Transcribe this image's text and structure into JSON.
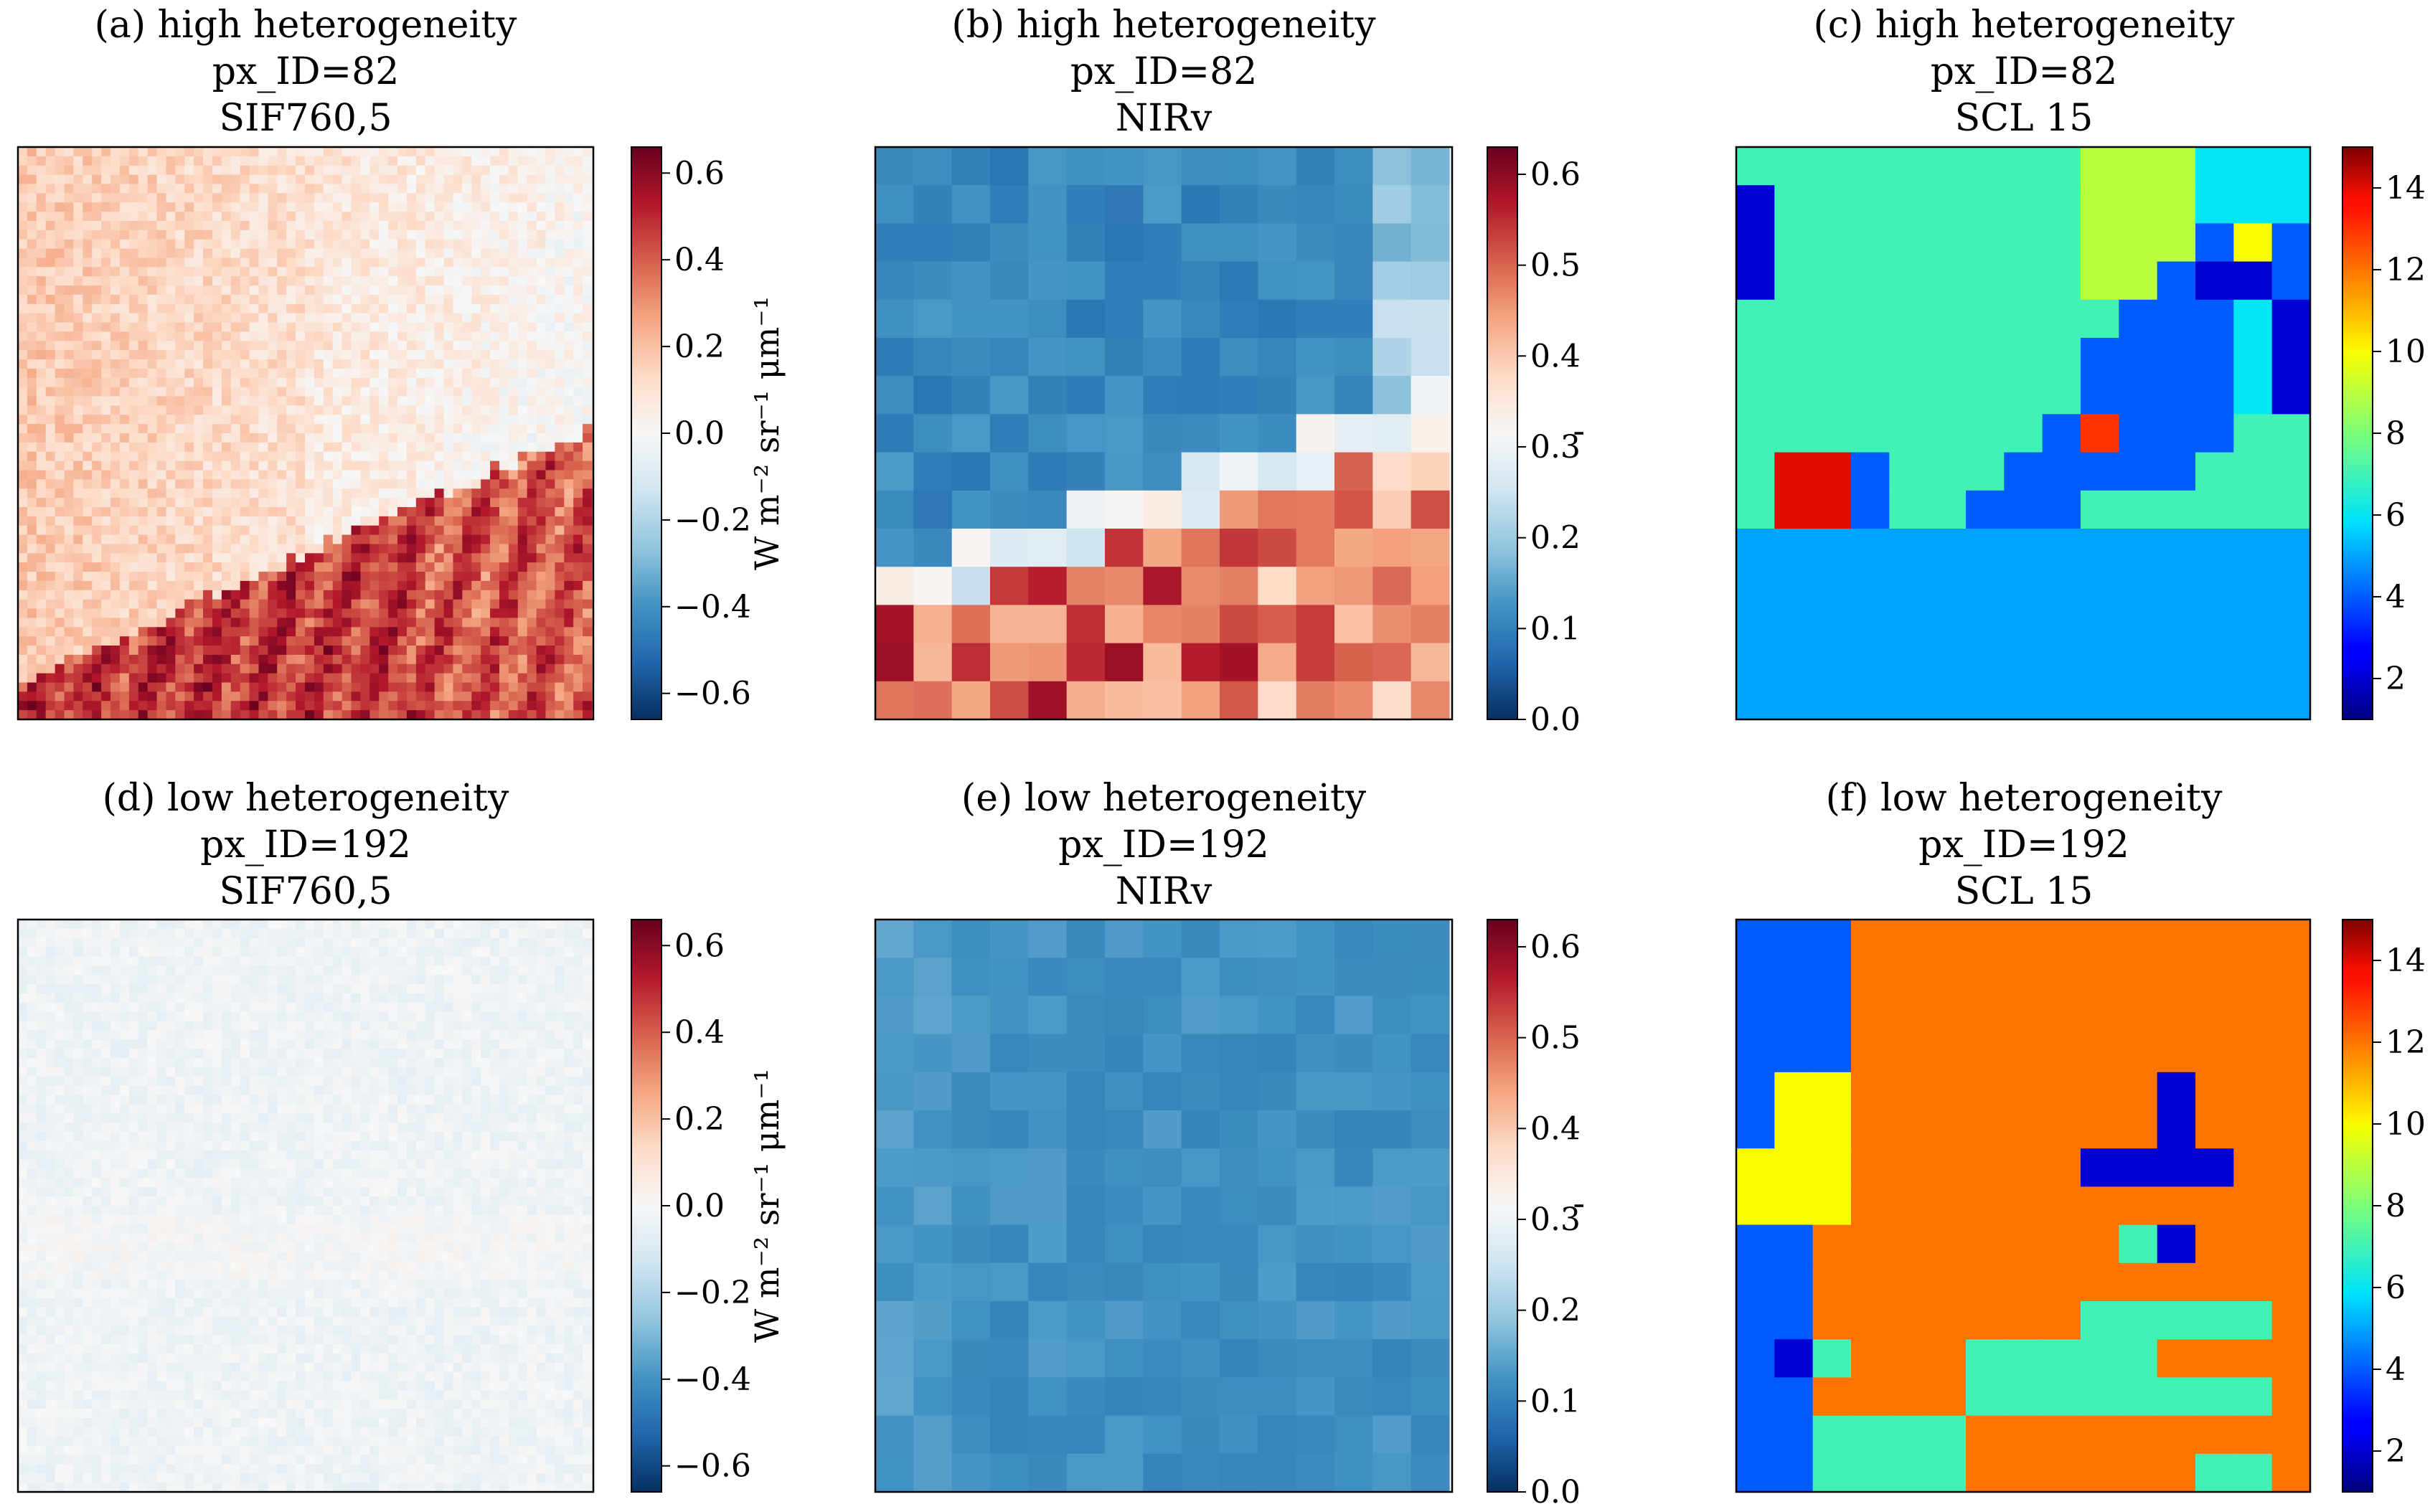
{
  "figure": {
    "description_layout": "2 rows x 3 panels",
    "colormaps": {
      "diverging": "RdBu_r",
      "categorical": "jet"
    }
  },
  "chart_data": [
    {
      "type": "heatmap",
      "panel": "a",
      "title_lines": [
        "(a) high heterogeneity",
        "px_ID=82",
        "SIF760,5"
      ],
      "grid_size": 62,
      "pattern": "sif_high",
      "vmin": -0.66,
      "vmax": 0.66,
      "colormap": "RdBu_r",
      "colorbar": {
        "ticks": [
          0.6,
          0.4,
          0.2,
          0.0,
          -0.2,
          -0.4,
          -0.6
        ],
        "tick_labels": [
          "0.6",
          "0.4",
          "0.2",
          "0.0",
          "−0.2",
          "−0.4",
          "−0.6"
        ],
        "label": "W m⁻² sr⁻¹ μm⁻¹"
      }
    },
    {
      "type": "heatmap",
      "panel": "b",
      "title_lines": [
        "(b) high heterogeneity",
        "px_ID=82",
        "NIRv"
      ],
      "grid_size": 15,
      "pattern": "nirv_high",
      "vmin": 0.0,
      "vmax": 0.63,
      "colormap": "RdBu_r",
      "colorbar": {
        "ticks": [
          0.6,
          0.5,
          0.4,
          0.3,
          0.2,
          0.1,
          0.0
        ],
        "tick_labels": [
          "0.6",
          "0.5",
          "0.4",
          "0.3",
          "0.2",
          "0.1",
          "0.0"
        ],
        "label": "'"
      }
    },
    {
      "type": "heatmap",
      "panel": "c",
      "title_lines": [
        "(c) high heterogeneity",
        "px_ID=82",
        "SCL 15"
      ],
      "grid_size": 15,
      "pattern": "scl_high",
      "vmin": 1,
      "vmax": 15,
      "colormap": "jet",
      "colorbar": {
        "ticks": [
          14,
          12,
          10,
          8,
          6,
          4,
          2
        ],
        "tick_labels": [
          "14",
          "12",
          "10",
          "8",
          "6",
          "4",
          "2"
        ],
        "label": ""
      }
    },
    {
      "type": "heatmap",
      "panel": "d",
      "title_lines": [
        "(d) low heterogeneity",
        "px_ID=192",
        "SIF760,5"
      ],
      "grid_size": 62,
      "pattern": "sif_low",
      "vmin": -0.66,
      "vmax": 0.66,
      "colormap": "RdBu_r",
      "colorbar": {
        "ticks": [
          0.6,
          0.4,
          0.2,
          0.0,
          -0.2,
          -0.4,
          -0.6
        ],
        "tick_labels": [
          "0.6",
          "0.4",
          "0.2",
          "0.0",
          "−0.2",
          "−0.4",
          "−0.6"
        ],
        "label": "W m⁻² sr⁻¹ μm⁻¹"
      }
    },
    {
      "type": "heatmap",
      "panel": "e",
      "title_lines": [
        "(e) low heterogeneity",
        "px_ID=192",
        "NIRv"
      ],
      "grid_size": 15,
      "pattern": "nirv_low",
      "vmin": 0.0,
      "vmax": 0.63,
      "colormap": "RdBu_r",
      "colorbar": {
        "ticks": [
          0.6,
          0.5,
          0.4,
          0.3,
          0.2,
          0.1,
          0.0
        ],
        "tick_labels": [
          "0.6",
          "0.5",
          "0.4",
          "0.3",
          "0.2",
          "0.1",
          "0.0"
        ],
        "label": "'"
      }
    },
    {
      "type": "heatmap",
      "panel": "f",
      "title_lines": [
        "(f) low heterogeneity",
        "px_ID=192",
        "SCL 15"
      ],
      "grid_size": 15,
      "pattern": "scl_low",
      "vmin": 1,
      "vmax": 15,
      "colormap": "jet",
      "colorbar": {
        "ticks": [
          14,
          12,
          10,
          8,
          6,
          4,
          2
        ],
        "tick_labels": [
          "14",
          "12",
          "10",
          "8",
          "6",
          "4",
          "2"
        ],
        "label": ""
      }
    }
  ]
}
